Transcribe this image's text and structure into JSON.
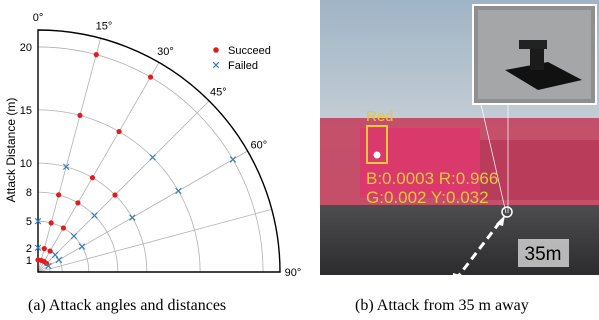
{
  "chart_data": {
    "type": "scatter",
    "coordinate_system": "polar",
    "angle_axis": {
      "unit": "deg",
      "range": [
        0,
        90
      ],
      "ticks": [
        0,
        15,
        30,
        45,
        60,
        90
      ],
      "tick_labels": [
        "0°",
        "15°",
        "30°",
        "45°",
        "60°",
        "90°"
      ]
    },
    "radius_axis": {
      "label": "Attack Distance (m)",
      "ticks": [
        1,
        2,
        5,
        8,
        10,
        15,
        20
      ]
    },
    "grid": true,
    "legend_position": "top-right",
    "series": [
      {
        "name": "Succeed",
        "marker": "circle",
        "color": "#e41a1c",
        "points": [
          {
            "angle": 15,
            "r": 20
          },
          {
            "angle": 30,
            "r": 20
          },
          {
            "angle": 15,
            "r": 15
          },
          {
            "angle": 30,
            "r": 15
          },
          {
            "angle": 30,
            "r": 10
          },
          {
            "angle": 45,
            "r": 10
          },
          {
            "angle": 15,
            "r": 8
          },
          {
            "angle": 30,
            "r": 8
          },
          {
            "angle": 15,
            "r": 5
          },
          {
            "angle": 30,
            "r": 5
          },
          {
            "angle": 15,
            "r": 2
          },
          {
            "angle": 30,
            "r": 2
          },
          {
            "angle": 0,
            "r": 1
          },
          {
            "angle": 15,
            "r": 1
          },
          {
            "angle": 30,
            "r": 1
          },
          {
            "angle": 45,
            "r": 1
          }
        ]
      },
      {
        "name": "Failed",
        "marker": "x",
        "color": "#377eb8",
        "points": [
          {
            "angle": 60,
            "r": 20
          },
          {
            "angle": 45,
            "r": 15
          },
          {
            "angle": 60,
            "r": 15
          },
          {
            "angle": 15,
            "r": 10
          },
          {
            "angle": 60,
            "r": 10
          },
          {
            "angle": 45,
            "r": 8
          },
          {
            "angle": 0,
            "r": 5
          },
          {
            "angle": 45,
            "r": 5
          },
          {
            "angle": 60,
            "r": 5
          },
          {
            "angle": 45,
            "r": 2
          },
          {
            "angle": 60,
            "r": 2
          },
          {
            "angle": 0,
            "r": 2
          },
          {
            "angle": 60,
            "r": 1
          }
        ]
      }
    ]
  },
  "photo": {
    "detection_label": "Red",
    "readout_line1": "B:0.0003 R:0.966",
    "readout_line2": "G:0.002 Y:0.032",
    "distance_label": "35m",
    "overlay_color": "#e3c93b"
  },
  "captions": {
    "left": "(a)  Attack angles and distances",
    "right": "(b)  Attack from 35 m away"
  }
}
